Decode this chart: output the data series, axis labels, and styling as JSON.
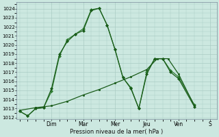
{
  "xlabel": "Pression niveau de la mer( hPa )",
  "background_color": "#cce8e0",
  "grid_color": "#aaccC4",
  "line_color1": "#1a5c1a",
  "line_color2": "#2e7d32",
  "ylim": [
    1011.8,
    1024.7
  ],
  "yticks": [
    1012,
    1013,
    1014,
    1015,
    1016,
    1017,
    1018,
    1019,
    1020,
    1021,
    1022,
    1023,
    1024
  ],
  "day_labels": [
    "Dim",
    "Mar",
    "Mer",
    "Jeu",
    "Ven",
    "S"
  ],
  "day_positions": [
    1.0,
    2.0,
    3.0,
    4.0,
    5.0,
    6.0
  ],
  "xlim": [
    -0.1,
    6.2
  ],
  "s1_x": [
    0.0,
    0.25,
    0.5,
    0.75,
    1.0,
    1.25,
    1.5,
    1.75,
    2.0,
    2.25,
    2.5,
    2.75,
    3.0,
    3.25,
    3.5,
    3.75,
    4.0,
    4.25,
    4.5,
    4.75,
    5.0,
    5.5
  ],
  "s1_y": [
    1012.7,
    1012.2,
    1013.0,
    1013.1,
    1015.2,
    1019.0,
    1020.4,
    1021.2,
    1021.6,
    1023.8,
    1024.05,
    1022.2,
    1019.5,
    1016.4,
    1015.2,
    1013.0,
    1016.8,
    1018.5,
    1018.5,
    1017.0,
    1016.3,
    1013.2
  ],
  "s2_x": [
    0.0,
    0.25,
    0.5,
    0.75,
    1.0,
    1.25,
    1.5,
    1.75,
    2.0,
    2.25,
    2.5,
    2.75,
    3.0,
    3.25,
    3.5,
    3.75,
    4.0,
    4.25,
    4.5,
    4.75,
    5.0,
    5.5
  ],
  "s2_y": [
    1012.7,
    1012.2,
    1013.0,
    1013.1,
    1014.9,
    1018.8,
    1020.6,
    1021.2,
    1021.8,
    1023.9,
    1024.05,
    1022.2,
    1019.5,
    1016.4,
    1015.3,
    1013.0,
    1017.0,
    1018.5,
    1018.5,
    1017.2,
    1016.5,
    1013.4
  ],
  "s3_x": [
    0.0,
    0.5,
    1.0,
    1.5,
    2.0,
    2.5,
    3.0,
    3.5,
    4.0,
    4.33,
    4.67,
    5.0,
    5.5
  ],
  "s3_y": [
    1012.8,
    1013.1,
    1013.3,
    1013.8,
    1014.5,
    1015.1,
    1015.8,
    1016.5,
    1017.3,
    1018.5,
    1018.5,
    1016.8,
    1013.3
  ]
}
